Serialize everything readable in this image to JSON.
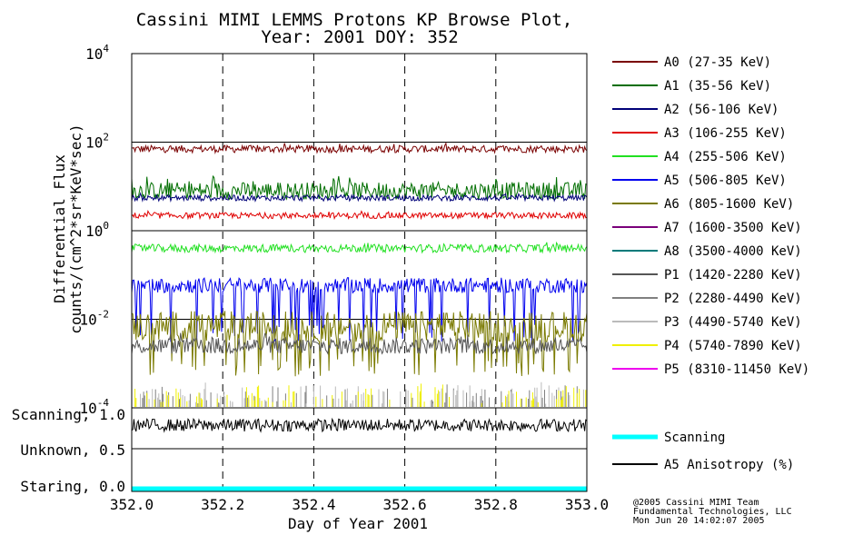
{
  "title_line1": "Cassini MIMI LEMMS Protons KP Browse Plot,",
  "title_line2": "Year: 2001 DOY: 352",
  "ylabel_line1": "Differential Flux",
  "ylabel_line2": "counts/(cm^2*sr*KeV*sec)",
  "xlabel": "Day of Year 2001",
  "credit": [
    "@2005 Cassini MIMI Team",
    "Fundamental Technologies, LLC",
    "Mon Jun 20 14:02:07 2005"
  ],
  "chart_data": [
    {
      "type": "line",
      "panel": "flux",
      "title": "Cassini MIMI LEMMS Protons KP Browse Plot, Year: 2001 DOY: 352",
      "xlabel": "Day of Year 2001",
      "ylabel": "Differential Flux counts/(cm^2*sr*KeV*sec)",
      "yscale": "log",
      "xlim": [
        352.0,
        353.0
      ],
      "ylim": [
        0.0001,
        10000
      ],
      "x_ticks": [
        "352.0",
        "352.2",
        "352.4",
        "352.6",
        "352.8",
        "353.0"
      ],
      "y_ticks": [
        {
          "base": "10",
          "exp": "4",
          "value": 10000
        },
        {
          "base": "10",
          "exp": "2",
          "value": 100
        },
        {
          "base": "10",
          "exp": "0",
          "value": 1
        },
        {
          "base": "10",
          "exp": "-2",
          "value": 0.01
        },
        {
          "base": "10",
          "exp": "-4",
          "value": 0.0001
        }
      ],
      "grid": "dashed vertical at major x ticks, solid horizontal at y decades",
      "legend_position": "right",
      "series": [
        {
          "name": "A0 (27-35 KeV)",
          "color": "#7a0000",
          "typical": 70,
          "low": 55,
          "high": 95
        },
        {
          "name": "A1 (35-56 KeV)",
          "color": "#006e00",
          "typical": 8,
          "low": 5,
          "high": 18
        },
        {
          "name": "A2 (56-106 KeV)",
          "color": "#000078",
          "typical": 5.5,
          "low": 4.5,
          "high": 7
        },
        {
          "name": "A3 (106-255 KeV)",
          "color": "#e00000",
          "typical": 2.2,
          "low": 1.8,
          "high": 2.8
        },
        {
          "name": "A4 (255-506 KeV)",
          "color": "#22e022",
          "typical": 0.4,
          "low": 0.3,
          "high": 0.55
        },
        {
          "name": "A5 (506-805 KeV)",
          "color": "#0000ee",
          "typical": 0.05,
          "low": 0.003,
          "high": 0.12
        },
        {
          "name": "A6 (805-1600 KeV)",
          "color": "#7a7a00",
          "typical": 0.005,
          "low": 0.0005,
          "high": 0.03
        },
        {
          "name": "A7 (1600-3500 KeV)",
          "color": "#7a007a",
          "typical": null,
          "low": null,
          "high": null
        },
        {
          "name": "A8 (3500-4000 KeV)",
          "color": "#007a7a",
          "typical": null,
          "low": null,
          "high": null
        },
        {
          "name": "P1 (1420-2280 KeV)",
          "color": "#555555",
          "typical": 0.0025,
          "low": 0.0015,
          "high": 0.005
        },
        {
          "name": "P2 (2280-4490 KeV)",
          "color": "#808080",
          "typical": 0.0002,
          "low": 0.0001,
          "high": 0.0004
        },
        {
          "name": "P3 (4490-5740 KeV)",
          "color": "#bbbbbb",
          "typical": 0.0002,
          "low": 0.0001,
          "high": 0.0004
        },
        {
          "name": "P4 (5740-7890 KeV)",
          "color": "#f0f000",
          "typical": 0.0002,
          "low": 0.0001,
          "high": 0.0004
        },
        {
          "name": "P5 (8310-11450 KeV)",
          "color": "#ee00ee",
          "typical": null,
          "low": null,
          "high": null
        }
      ]
    },
    {
      "type": "line",
      "panel": "anisotropy",
      "xlim": [
        352.0,
        353.0
      ],
      "y_ticks": [
        {
          "label": "Scanning, 1.0",
          "value": 1.0
        },
        {
          "label": "Unknown, 0.5",
          "value": 0.5
        },
        {
          "label": "Staring, 0.0",
          "value": 0.0
        }
      ],
      "series": [
        {
          "name": "Scanning",
          "color": "#00ffff",
          "value": 0.0
        },
        {
          "name": "A5 Anisotropy (%)",
          "color": "#000000",
          "typical": 0.85,
          "low": 0.7,
          "high": 1.0
        }
      ]
    }
  ]
}
